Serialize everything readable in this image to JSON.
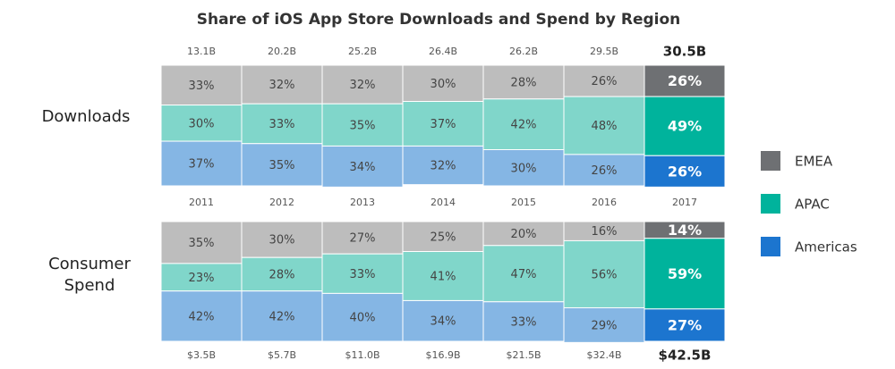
{
  "chart_data": {
    "type": "bar",
    "stacked": true,
    "title": "Share of iOS App Store Downloads and Spend by Region",
    "categories": [
      "2011",
      "2012",
      "2013",
      "2014",
      "2015",
      "2016",
      "2017"
    ],
    "highlight_last": true,
    "ylim": [
      0,
      100
    ],
    "series": [
      {
        "name": "EMEA",
        "color": "#6e7073",
        "faded_color": "#bdbdbd"
      },
      {
        "name": "APAC",
        "color": "#00b39c",
        "faded_color": "#80d6ca"
      },
      {
        "name": "Americas",
        "color": "#1c75cf",
        "faded_color": "#85b6e4"
      }
    ],
    "panels": [
      {
        "label": "Downloads",
        "totals": [
          13.1,
          20.2,
          25.2,
          26.4,
          26.2,
          29.5,
          30.5
        ],
        "totals_labels": [
          "13.1B",
          "20.2B",
          "25.2B",
          "26.4B",
          "26.2B",
          "29.5B",
          "30.5B"
        ],
        "values": [
          [
            33,
            32,
            32,
            30,
            28,
            26,
            26
          ],
          [
            30,
            33,
            35,
            37,
            42,
            48,
            49
          ],
          [
            37,
            35,
            34,
            32,
            30,
            26,
            26
          ]
        ],
        "value_labels": [
          [
            "33%",
            "32%",
            "32%",
            "30%",
            "28%",
            "26%",
            "26%"
          ],
          [
            "30%",
            "33%",
            "35%",
            "37%",
            "42%",
            "48%",
            "49%"
          ],
          [
            "37%",
            "35%",
            "34%",
            "32%",
            "30%",
            "26%",
            "26%"
          ]
        ]
      },
      {
        "label": "Consumer Spend",
        "totals": [
          3.5,
          5.7,
          11.0,
          16.9,
          21.5,
          32.4,
          42.5
        ],
        "totals_labels": [
          "$3.5B",
          "$5.7B",
          "$11.0B",
          "$16.9B",
          "$21.5B",
          "$32.4B",
          "$42.5B"
        ],
        "values": [
          [
            35,
            30,
            27,
            25,
            20,
            16,
            14
          ],
          [
            23,
            28,
            33,
            41,
            47,
            56,
            59
          ],
          [
            42,
            42,
            40,
            34,
            33,
            29,
            27
          ]
        ],
        "value_labels": [
          [
            "35%",
            "30%",
            "27%",
            "25%",
            "20%",
            "16%",
            "14%"
          ],
          [
            "23%",
            "28%",
            "33%",
            "41%",
            "47%",
            "56%",
            "59%"
          ],
          [
            "42%",
            "42%",
            "40%",
            "34%",
            "33%",
            "29%",
            "27%"
          ]
        ]
      }
    ]
  }
}
